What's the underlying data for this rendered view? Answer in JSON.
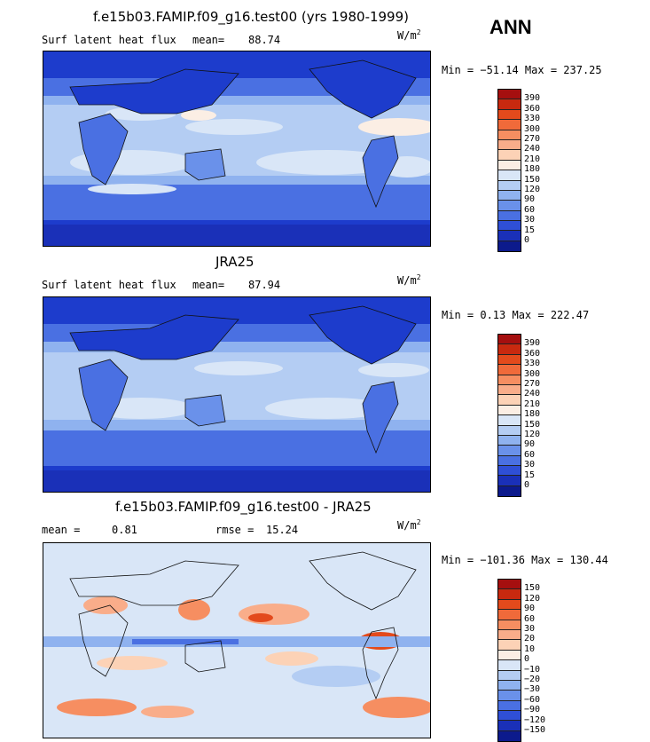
{
  "season": "ANN",
  "units": {
    "base": "W/m",
    "exp": "2"
  },
  "panels": [
    {
      "title": "f.e15b03.FAMIP.f09_g16.test00 (yrs 1980-1999)",
      "variable": "Surf latent heat flux",
      "mean_label": "mean=",
      "mean_value": "88.74",
      "minmax": "Min = −51.14 Max = 237.25",
      "colorbar": {
        "labels": [
          "390",
          "360",
          "330",
          "300",
          "270",
          "240",
          "210",
          "180",
          "150",
          "120",
          "90",
          "60",
          "30",
          "15",
          "0"
        ],
        "colors": [
          "#a50f0f",
          "#c8290f",
          "#e34a1c",
          "#f06a3a",
          "#f68e61",
          "#f9ad8a",
          "#fcd2b6",
          "#fbeee4",
          "#d9e6f7",
          "#b4cdf3",
          "#8fb2ef",
          "#6a91ea",
          "#4a70e2",
          "#2f4fd6",
          "#1a30b8",
          "#0c1a8c"
        ]
      }
    },
    {
      "title": "JRA25",
      "variable": "Surf latent heat flux",
      "mean_label": "mean=",
      "mean_value": "87.94",
      "minmax": "Min =   0.13 Max = 222.47",
      "colorbar": {
        "labels": [
          "390",
          "360",
          "330",
          "300",
          "270",
          "240",
          "210",
          "180",
          "150",
          "120",
          "90",
          "60",
          "30",
          "15",
          "0"
        ],
        "colors": [
          "#a50f0f",
          "#c8290f",
          "#e34a1c",
          "#f06a3a",
          "#f68e61",
          "#f9ad8a",
          "#fcd2b6",
          "#fbeee4",
          "#d9e6f7",
          "#b4cdf3",
          "#8fb2ef",
          "#6a91ea",
          "#4a70e2",
          "#2f4fd6",
          "#1a30b8",
          "#0c1a8c"
        ]
      }
    },
    {
      "title": "f.e15b03.FAMIP.f09_g16.test00 - JRA25",
      "variable": "",
      "mean_label": "mean =",
      "mean_value": "0.81",
      "rmse_label": "rmse =",
      "rmse_value": "15.24",
      "minmax": "Min = −101.36 Max = 130.44",
      "colorbar": {
        "labels": [
          "150",
          "120",
          "90",
          "60",
          "30",
          "20",
          "10",
          "0",
          "−10",
          "−20",
          "−30",
          "−60",
          "−90",
          "−120",
          "−150"
        ],
        "colors": [
          "#a50f0f",
          "#c8290f",
          "#e34a1c",
          "#f06a3a",
          "#f68e61",
          "#f9ad8a",
          "#fcd2b6",
          "#fbeee4",
          "#d9e6f7",
          "#b4cdf3",
          "#8fb2ef",
          "#6a91ea",
          "#4a70e2",
          "#2f4fd6",
          "#1a30b8",
          "#0c1a8c"
        ]
      }
    }
  ]
}
